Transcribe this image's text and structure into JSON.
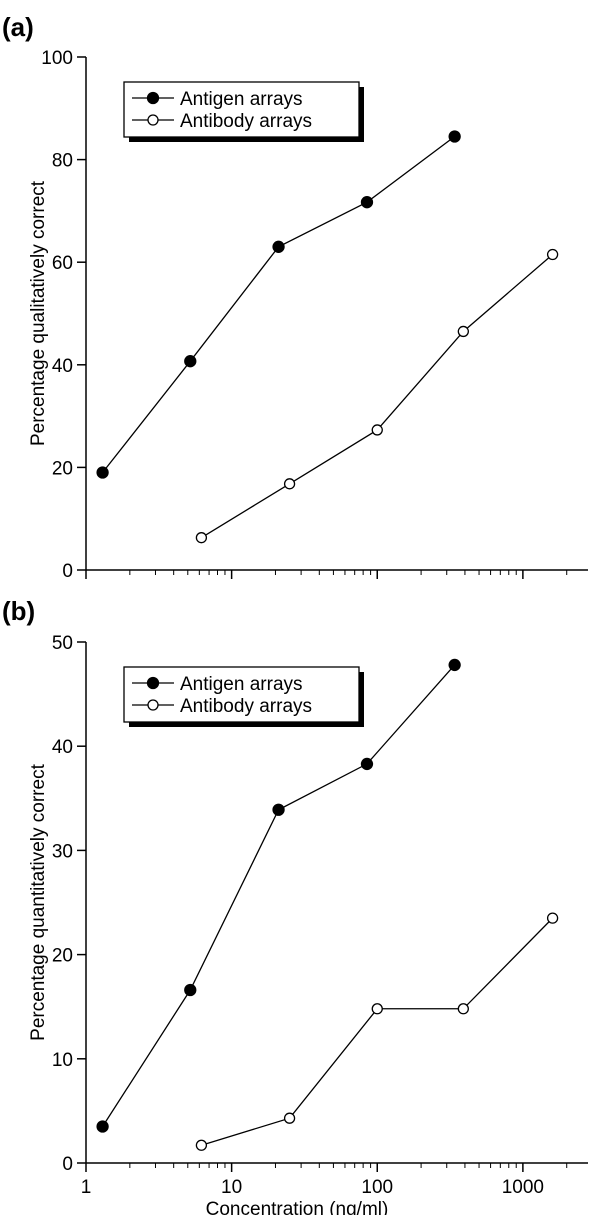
{
  "chart_data": [
    {
      "panel_label": "(a)",
      "type": "line",
      "xlabel": "",
      "ylabel": "Percentage qualitatively correct",
      "xscale": "log",
      "xlim": [
        1,
        2800
      ],
      "ylim": [
        0,
        100
      ],
      "yticks": [
        0,
        20,
        40,
        60,
        80,
        100
      ],
      "xticks_labeled": [],
      "legend_position": "top-left",
      "series": [
        {
          "name": "Antigen arrays",
          "marker": "filled-circle",
          "x": [
            1.3,
            5.2,
            21,
            85,
            340
          ],
          "y": [
            19,
            40.7,
            63,
            71.7,
            84.5
          ]
        },
        {
          "name": "Antibody arrays",
          "marker": "open-circle",
          "x": [
            6.2,
            25,
            100,
            390,
            1600
          ],
          "y": [
            6.3,
            16.8,
            27.3,
            46.5,
            61.5
          ]
        }
      ]
    },
    {
      "panel_label": "(b)",
      "type": "line",
      "xlabel": "Concentration (ng/ml)",
      "ylabel": "Percentage quantitatively correct",
      "xscale": "log",
      "xlim": [
        1,
        2800
      ],
      "ylim": [
        0,
        50
      ],
      "yticks": [
        0,
        10,
        20,
        30,
        40,
        50
      ],
      "xticks_labeled": [
        1,
        10,
        100,
        1000
      ],
      "legend_position": "top-left",
      "series": [
        {
          "name": "Antigen arrays",
          "marker": "filled-circle",
          "x": [
            1.3,
            5.2,
            21,
            85,
            340
          ],
          "y": [
            3.5,
            16.6,
            33.9,
            38.3,
            47.8
          ]
        },
        {
          "name": "Antibody arrays",
          "marker": "open-circle",
          "x": [
            6.2,
            25,
            100,
            390,
            1600
          ],
          "y": [
            1.7,
            4.3,
            14.8,
            14.8,
            23.5
          ]
        }
      ]
    }
  ]
}
